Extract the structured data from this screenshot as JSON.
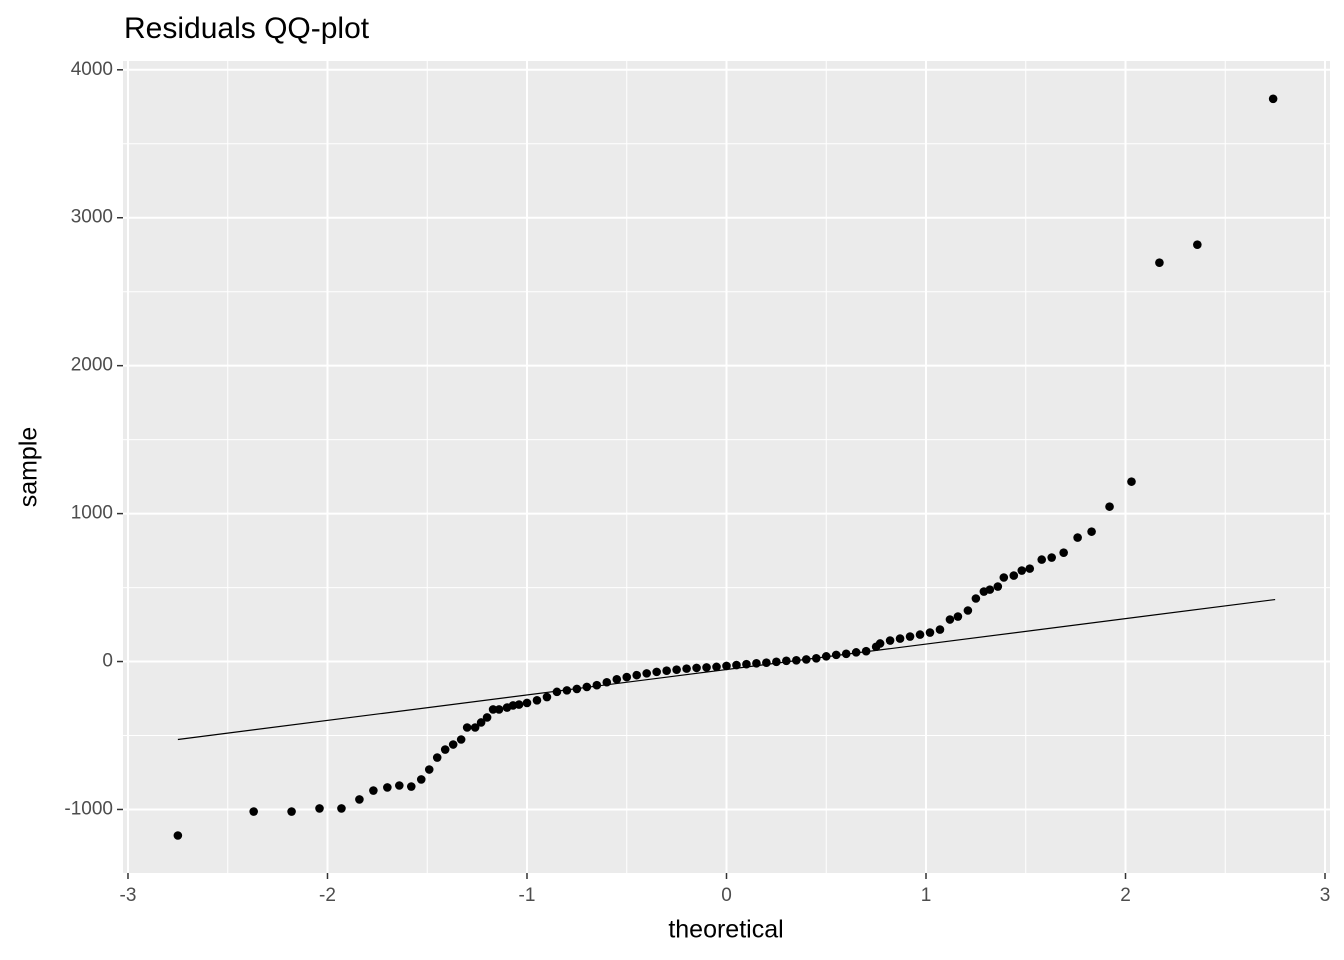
{
  "chart_data": {
    "type": "scatter",
    "title": "Residuals QQ-plot",
    "x_label": "theoretical",
    "y_label": "sample",
    "x": [
      -2.75,
      -2.37,
      -2.18,
      -2.04,
      -1.93,
      -1.84,
      -1.77,
      -1.7,
      -1.64,
      -1.58,
      -1.53,
      -1.49,
      -1.45,
      -1.41,
      -1.37,
      -1.33,
      -1.3,
      -1.26,
      -1.23,
      -1.2,
      -1.17,
      -1.14,
      -1.1,
      -1.07,
      -1.04,
      -1.0,
      -0.95,
      -0.9,
      -0.85,
      -0.8,
      -0.75,
      -0.7,
      -0.65,
      -0.6,
      -0.55,
      -0.5,
      -0.45,
      -0.4,
      -0.35,
      -0.3,
      -0.25,
      -0.2,
      -0.15,
      -0.1,
      -0.05,
      0,
      0.05,
      0.1,
      0.15,
      0.2,
      0.25,
      0.3,
      0.35,
      0.4,
      0.45,
      0.5,
      0.55,
      0.6,
      0.65,
      0.7,
      0.75,
      0.77,
      0.82,
      0.87,
      0.92,
      0.97,
      1.02,
      1.07,
      1.12,
      1.16,
      1.21,
      1.25,
      1.29,
      1.32,
      1.36,
      1.39,
      1.44,
      1.48,
      1.52,
      1.58,
      1.63,
      1.69,
      1.76,
      1.83,
      1.92,
      2.03,
      2.17,
      2.36,
      2.74
    ],
    "y": [
      -1176,
      -1014,
      -1014,
      -993,
      -993,
      -932,
      -872,
      -851,
      -838,
      -845,
      -797,
      -730,
      -649,
      -595,
      -561,
      -527,
      -446,
      -446,
      -412,
      -378,
      -324,
      -324,
      -311,
      -297,
      -291,
      -280,
      -262,
      -240,
      -205,
      -195,
      -185,
      -172,
      -160,
      -140,
      -120,
      -105,
      -92,
      -80,
      -70,
      -62,
      -55,
      -48,
      -43,
      -40,
      -36,
      -30,
      -24,
      -18,
      -12,
      -8,
      -2,
      5,
      8,
      14,
      22,
      35,
      45,
      52,
      62,
      70,
      100,
      122,
      142,
      155,
      169,
      182,
      196,
      216,
      284,
      304,
      345,
      426,
      473,
      486,
      507,
      568,
      581,
      615,
      628,
      689,
      703,
      736,
      838,
      878,
      1047,
      1216,
      2696,
      2818,
      3804
    ],
    "color": "#000000",
    "line": {
      "x": [
        -2.75,
        2.75
      ],
      "y": [
        -527,
        419
      ],
      "color": "#000000"
    },
    "xlim": [
      -3.025,
      3.025
    ],
    "ylim": [
      -1429.5,
      4059.5
    ],
    "xticks": [
      {
        "value": -3,
        "label": "-3"
      },
      -2,
      -1,
      0,
      1,
      2,
      3
    ],
    "yticks": [
      {
        "value": -1000,
        "label": "-1000"
      },
      0,
      1000,
      2000,
      3000,
      4000
    ],
    "grid": true
  }
}
